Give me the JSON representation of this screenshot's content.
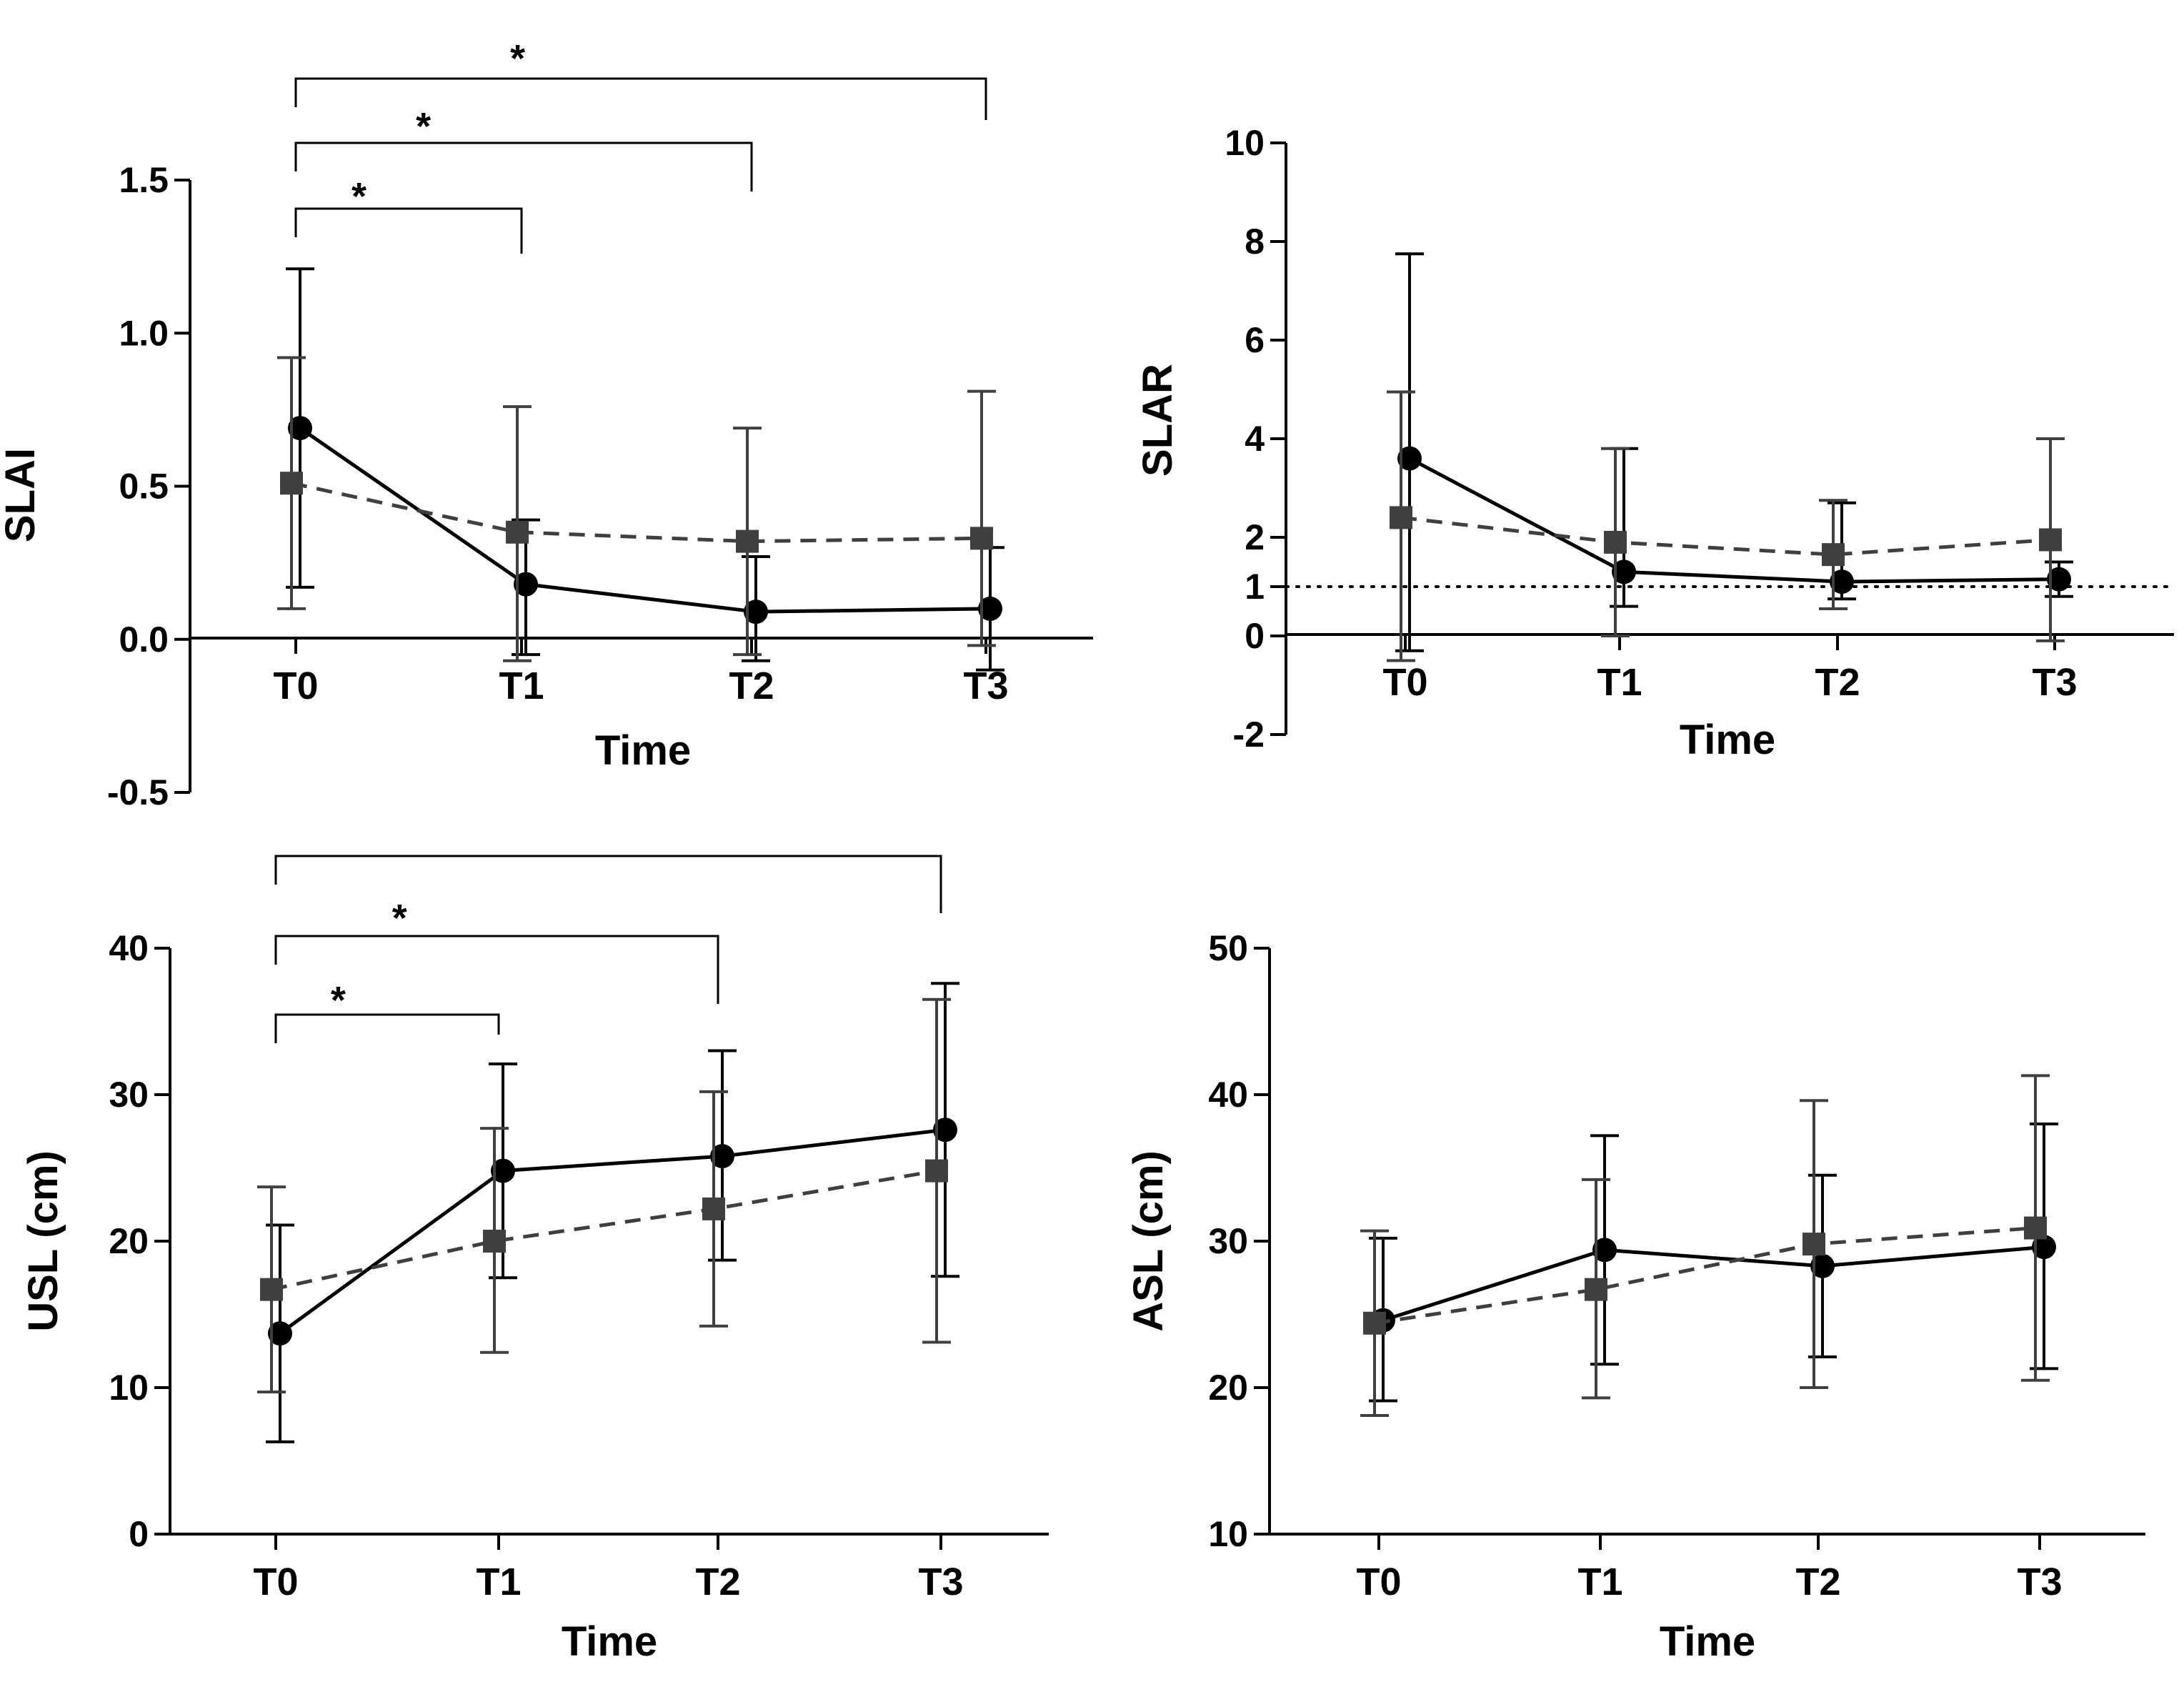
{
  "chart_data": [
    {
      "type": "line",
      "panel": "top-left",
      "title": "",
      "xlabel": "Time",
      "ylabel": "SLAI",
      "categories": [
        "T0",
        "T1",
        "T2",
        "T3"
      ],
      "ylim": [
        -0.5,
        1.5
      ],
      "yticks": [
        -0.5,
        0.0,
        0.5,
        1.0,
        1.5
      ],
      "ytick_labels": [
        "-0.5",
        "0.0",
        "0.5",
        "1.0",
        "1.5"
      ],
      "series": [
        {
          "name": "solid-circle",
          "style": "solid",
          "marker": "circle",
          "color": "#000000",
          "values": [
            0.69,
            0.18,
            0.09,
            0.1
          ],
          "err_low": [
            0.17,
            -0.05,
            -0.07,
            -0.1
          ],
          "err_high": [
            1.21,
            0.39,
            0.27,
            0.3
          ]
        },
        {
          "name": "dashed-square",
          "style": "dashed",
          "marker": "square",
          "color": "#3f3f3f",
          "values": [
            0.51,
            0.35,
            0.32,
            0.33
          ],
          "err_low": [
            0.1,
            -0.07,
            -0.05,
            -0.02
          ],
          "err_high": [
            0.92,
            0.76,
            0.69,
            0.81
          ]
        }
      ],
      "reference_line": null,
      "significance": [
        {
          "from": "T0",
          "to": "T1",
          "label": "*"
        },
        {
          "from": "T0",
          "to": "T2",
          "label": "*"
        },
        {
          "from": "T0",
          "to": "T3",
          "label": "*"
        }
      ]
    },
    {
      "type": "line",
      "panel": "top-right",
      "title": "",
      "xlabel": "Time",
      "ylabel": "SLAR",
      "categories": [
        "T0",
        "T1",
        "T2",
        "T3"
      ],
      "ylim": [
        -2,
        10
      ],
      "yticks": [
        -2,
        0,
        1,
        2,
        4,
        6,
        8,
        10
      ],
      "ytick_labels": [
        "-2",
        "0",
        "1",
        "2",
        "4",
        "6",
        "8",
        "10"
      ],
      "series": [
        {
          "name": "solid-circle",
          "style": "solid",
          "marker": "circle",
          "color": "#000000",
          "values": [
            3.6,
            1.3,
            1.1,
            1.15
          ],
          "err_low": [
            -0.3,
            0.6,
            0.75,
            0.8
          ],
          "err_high": [
            7.75,
            3.8,
            2.7,
            1.5
          ]
        },
        {
          "name": "dashed-square",
          "style": "dashed",
          "marker": "square",
          "color": "#3f3f3f",
          "values": [
            2.4,
            1.9,
            1.65,
            1.95
          ],
          "err_low": [
            -0.5,
            0.0,
            0.55,
            -0.1
          ],
          "err_high": [
            4.95,
            3.8,
            2.75,
            4.0
          ]
        }
      ],
      "reference_line": {
        "y": 1,
        "style": "dotted"
      },
      "significance": []
    },
    {
      "type": "line",
      "panel": "bottom-left",
      "title": "",
      "xlabel": "Time",
      "ylabel": "USL (cm)",
      "categories": [
        "T0",
        "T1",
        "T2",
        "T3"
      ],
      "ylim": [
        0,
        40
      ],
      "yticks": [
        0,
        10,
        20,
        30,
        40
      ],
      "ytick_labels": [
        "0",
        "10",
        "20",
        "30",
        "40"
      ],
      "series": [
        {
          "name": "solid-circle",
          "style": "solid",
          "marker": "circle",
          "color": "#000000",
          "values": [
            13.7,
            24.8,
            25.8,
            27.6
          ],
          "err_low": [
            6.3,
            17.5,
            18.7,
            17.6
          ],
          "err_high": [
            21.1,
            32.1,
            33.0,
            37.6
          ]
        },
        {
          "name": "dashed-square",
          "style": "dashed",
          "marker": "square",
          "color": "#3f3f3f",
          "values": [
            16.7,
            20.0,
            22.2,
            24.8
          ],
          "err_low": [
            9.7,
            12.4,
            14.2,
            13.1
          ],
          "err_high": [
            23.7,
            27.7,
            30.2,
            36.5
          ]
        }
      ],
      "reference_line": null,
      "significance": [
        {
          "from": "T0",
          "to": "T1",
          "label": "*"
        },
        {
          "from": "T0",
          "to": "T2",
          "label": "*"
        },
        {
          "from": "T0",
          "to": "T3",
          "label": ""
        }
      ]
    },
    {
      "type": "line",
      "panel": "bottom-right",
      "title": "",
      "xlabel": "Time",
      "ylabel": "ASL (cm)",
      "categories": [
        "T0",
        "T1",
        "T2",
        "T3"
      ],
      "ylim": [
        10,
        50
      ],
      "yticks": [
        10,
        20,
        30,
        40,
        50
      ],
      "ytick_labels": [
        "10",
        "20",
        "30",
        "40",
        "50"
      ],
      "series": [
        {
          "name": "solid-circle",
          "style": "solid",
          "marker": "circle",
          "color": "#000000",
          "values": [
            24.6,
            29.4,
            28.3,
            29.6
          ],
          "err_low": [
            19.1,
            21.6,
            22.1,
            21.3
          ],
          "err_high": [
            30.2,
            37.2,
            34.5,
            38.0
          ]
        },
        {
          "name": "dashed-square",
          "style": "dashed",
          "marker": "square",
          "color": "#3f3f3f",
          "values": [
            24.4,
            26.7,
            29.8,
            30.9
          ],
          "err_low": [
            18.1,
            19.3,
            20.0,
            20.5
          ],
          "err_high": [
            30.7,
            34.2,
            39.6,
            41.3
          ]
        }
      ],
      "reference_line": null,
      "significance": []
    }
  ]
}
